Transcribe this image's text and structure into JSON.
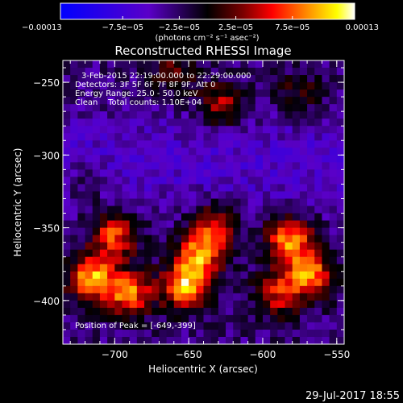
{
  "chart_data": {
    "type": "heatmap",
    "title": "Reconstructed RHESSI Image",
    "xlabel": "Heliocentric X (arcsec)",
    "ylabel": "Heliocentric Y (arcsec)",
    "xlim": [
      -735,
      -545
    ],
    "ylim": [
      -430,
      -235
    ],
    "x_ticks": [
      -700,
      -650,
      -600,
      -550
    ],
    "y_ticks": [
      -250,
      -300,
      -350,
      -400
    ],
    "x_tick_labels": [
      "−700",
      "−650",
      "−600",
      "−550"
    ],
    "y_tick_labels": [
      "−250",
      "−300",
      "−350",
      "−400"
    ],
    "colorbar": {
      "range": [
        -0.00013,
        0.00013
      ],
      "tick_labels": [
        "−0.00013",
        "−7.5e−05",
        "−2.5e−05",
        "2.5e−05",
        "7.5e−05",
        "0.00013"
      ],
      "unit_label": "(photons cm⁻² s⁻¹ asec⁻²)"
    },
    "annotations": [
      "3-Feb-2015 22:19:00.000 to 22:29:00.000",
      "Detectors: 3F 5F 6F 7F 8F 9F, Att 0",
      "Energy Range: 25.0 - 50.0 keV",
      "Clean    Total counts: 1.10E+04"
    ],
    "peak_label": "Position of Peak = [-649,-399]",
    "peak_position": [
      -649,
      -399
    ],
    "sources": [
      {
        "x": -715,
        "y": -385,
        "value": 0.00013
      },
      {
        "x": -700,
        "y": -355,
        "value": 0.0001
      },
      {
        "x": -690,
        "y": -395,
        "value": 0.00011
      },
      {
        "x": -652,
        "y": -390,
        "value": 0.00013
      },
      {
        "x": -642,
        "y": -368,
        "value": 0.00011
      },
      {
        "x": -632,
        "y": -348,
        "value": 8e-05
      },
      {
        "x": -582,
        "y": -358,
        "value": 0.00012
      },
      {
        "x": -568,
        "y": -382,
        "value": 0.00011
      },
      {
        "x": -590,
        "y": -395,
        "value": 8e-05
      },
      {
        "x": -628,
        "y": -265,
        "value": 7e-05
      },
      {
        "x": -660,
        "y": -242,
        "value": 5e-05
      },
      {
        "x": -575,
        "y": -258,
        "value": 4e-05
      },
      {
        "x": -720,
        "y": -318,
        "value": 3e-05
      }
    ]
  },
  "footer": {
    "timestamp": "29-Jul-2017 18:55"
  }
}
